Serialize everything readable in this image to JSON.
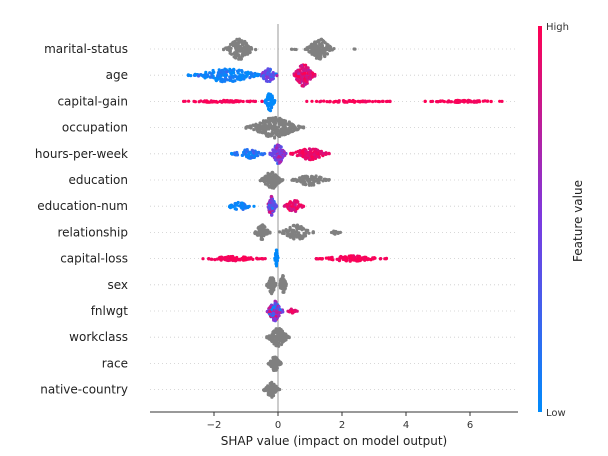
{
  "chart_data": {
    "type": "scatter",
    "subtype": "shap-beeswarm",
    "xlabel": "SHAP value (impact on model output)",
    "xlim": [
      -4,
      7.5
    ],
    "xticks": [
      -2,
      0,
      2,
      4,
      6
    ],
    "xtick_labels": [
      "−2",
      "0",
      "2",
      "4",
      "6"
    ],
    "colorbar": {
      "title": "Feature value",
      "high_label": "High",
      "low_label": "Low",
      "high_color": "#ff0052",
      "low_color": "#008bfb",
      "no_value_color": "#808080"
    },
    "features": [
      {
        "name": "marital-status",
        "colored": false,
        "clusters": [
          {
            "x": -1.2,
            "w": 0.5,
            "n": 130,
            "h": 0.95,
            "c": 0.5
          },
          {
            "x": 1.3,
            "w": 0.45,
            "n": 140,
            "h": 0.95,
            "c": 0.5
          },
          {
            "x": 0.5,
            "w": 0.08,
            "n": 4,
            "h": 0.3,
            "c": 0.5
          },
          {
            "x": 2.4,
            "w": 0.05,
            "n": 2,
            "h": 0.1,
            "c": 0.5
          }
        ]
      },
      {
        "name": "age",
        "colored": true,
        "clusters": [
          {
            "x": -1.6,
            "w": 1.2,
            "n": 160,
            "h": 0.6,
            "c": 0.05,
            "cs": 0.08
          },
          {
            "x": -0.3,
            "w": 0.3,
            "n": 50,
            "h": 0.6,
            "c": 0.35,
            "cs": 0.15
          },
          {
            "x": 0.8,
            "w": 0.35,
            "n": 160,
            "h": 1.0,
            "c": 0.85,
            "cs": 0.12
          }
        ]
      },
      {
        "name": "capital-gain",
        "colored": true,
        "clusters": [
          {
            "x": -0.25,
            "w": 0.15,
            "n": 60,
            "h": 0.9,
            "c": 0.0,
            "cs": 0.03
          },
          {
            "x": -1.8,
            "w": 1.3,
            "n": 70,
            "h": 0.1,
            "c": 0.97,
            "cs": 0.02
          },
          {
            "x": 2.2,
            "w": 1.3,
            "n": 60,
            "h": 0.1,
            "c": 0.97,
            "cs": 0.02
          },
          {
            "x": 5.8,
            "w": 1.2,
            "n": 70,
            "h": 0.1,
            "c": 0.97,
            "cs": 0.02
          }
        ]
      },
      {
        "name": "occupation",
        "colored": false,
        "clusters": [
          {
            "x": -0.1,
            "w": 0.9,
            "n": 260,
            "h": 0.95,
            "c": 0.5
          }
        ]
      },
      {
        "name": "hours-per-week",
        "colored": true,
        "clusters": [
          {
            "x": -0.9,
            "w": 0.55,
            "n": 70,
            "h": 0.4,
            "c": 0.12,
            "cs": 0.08
          },
          {
            "x": 0.0,
            "w": 0.25,
            "n": 90,
            "h": 0.95,
            "c": 0.5,
            "cs": 0.15
          },
          {
            "x": 1.0,
            "w": 0.6,
            "n": 110,
            "h": 0.55,
            "c": 0.92,
            "cs": 0.06
          }
        ]
      },
      {
        "name": "education",
        "colored": false,
        "clusters": [
          {
            "x": -0.2,
            "w": 0.35,
            "n": 130,
            "h": 0.8,
            "c": 0.5
          },
          {
            "x": 1.0,
            "w": 0.6,
            "n": 90,
            "h": 0.5,
            "c": 0.5
          }
        ]
      },
      {
        "name": "education-num",
        "colored": true,
        "clusters": [
          {
            "x": -1.2,
            "w": 0.45,
            "n": 45,
            "h": 0.35,
            "c": 0.05,
            "cs": 0.06
          },
          {
            "x": -0.2,
            "w": 0.15,
            "n": 80,
            "h": 0.9,
            "c": 0.45,
            "cs": 0.2
          },
          {
            "x": 0.5,
            "w": 0.3,
            "n": 70,
            "h": 0.6,
            "c": 0.9,
            "cs": 0.07
          }
        ]
      },
      {
        "name": "relationship",
        "colored": false,
        "clusters": [
          {
            "x": -0.5,
            "w": 0.25,
            "n": 70,
            "h": 0.7,
            "c": 0.5
          },
          {
            "x": 0.6,
            "w": 0.55,
            "n": 90,
            "h": 0.7,
            "c": 0.5
          },
          {
            "x": 1.8,
            "w": 0.15,
            "n": 12,
            "h": 0.2,
            "c": 0.5
          }
        ]
      },
      {
        "name": "capital-loss",
        "colored": true,
        "clusters": [
          {
            "x": -0.05,
            "w": 0.05,
            "n": 40,
            "h": 0.9,
            "c": 0.0,
            "cs": 0.02
          },
          {
            "x": -1.4,
            "w": 1.0,
            "n": 90,
            "h": 0.2,
            "c": 0.97,
            "cs": 0.02
          },
          {
            "x": 2.3,
            "w": 1.1,
            "n": 110,
            "h": 0.25,
            "c": 0.97,
            "cs": 0.02
          }
        ]
      },
      {
        "name": "sex",
        "colored": false,
        "clusters": [
          {
            "x": -0.2,
            "w": 0.15,
            "n": 70,
            "h": 0.8,
            "c": 0.5
          },
          {
            "x": 0.15,
            "w": 0.12,
            "n": 60,
            "h": 0.9,
            "c": 0.5
          }
        ]
      },
      {
        "name": "fnlwgt",
        "colored": true,
        "clusters": [
          {
            "x": -0.1,
            "w": 0.25,
            "n": 140,
            "h": 0.9,
            "c": 0.5,
            "cs": 0.25
          },
          {
            "x": 0.45,
            "w": 0.15,
            "n": 20,
            "h": 0.2,
            "c": 0.9,
            "cs": 0.05
          }
        ]
      },
      {
        "name": "workclass",
        "colored": false,
        "clusters": [
          {
            "x": 0.0,
            "w": 0.35,
            "n": 150,
            "h": 0.85,
            "c": 0.5
          }
        ]
      },
      {
        "name": "race",
        "colored": false,
        "clusters": [
          {
            "x": -0.1,
            "w": 0.2,
            "n": 80,
            "h": 0.7,
            "c": 0.5
          }
        ]
      },
      {
        "name": "native-country",
        "colored": false,
        "clusters": [
          {
            "x": -0.2,
            "w": 0.25,
            "n": 90,
            "h": 0.7,
            "c": 0.5
          }
        ]
      }
    ]
  }
}
